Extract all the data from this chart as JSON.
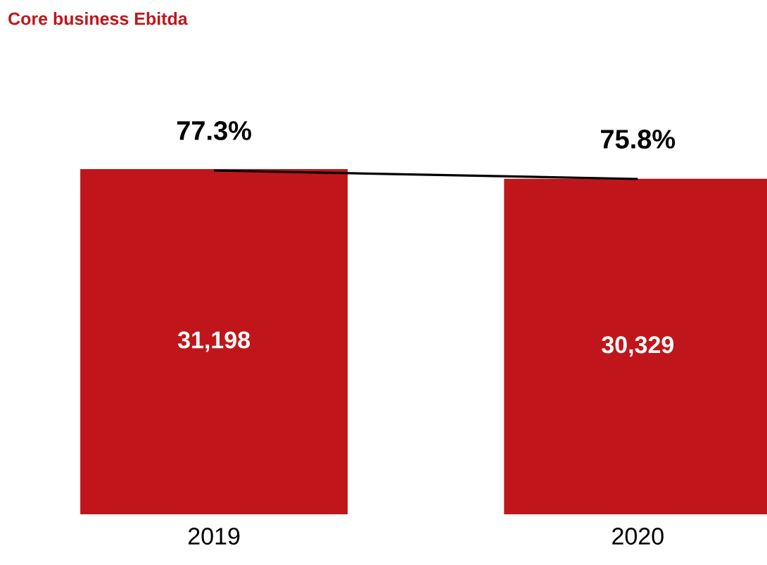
{
  "chart_data": {
    "type": "bar",
    "title": "Core business Ebitda",
    "categories": [
      "2019",
      "2020"
    ],
    "series": [
      {
        "color": "#c0161b",
        "values": [
          31198,
          30329
        ],
        "value_labels": [
          "31,198",
          "30,329"
        ]
      },
      {
        "type": "line",
        "axis": "y2",
        "color": "#000000",
        "values": [
          77.3,
          75.8
        ],
        "value_labels": [
          "77.3%",
          "75.8%"
        ]
      }
    ]
  }
}
